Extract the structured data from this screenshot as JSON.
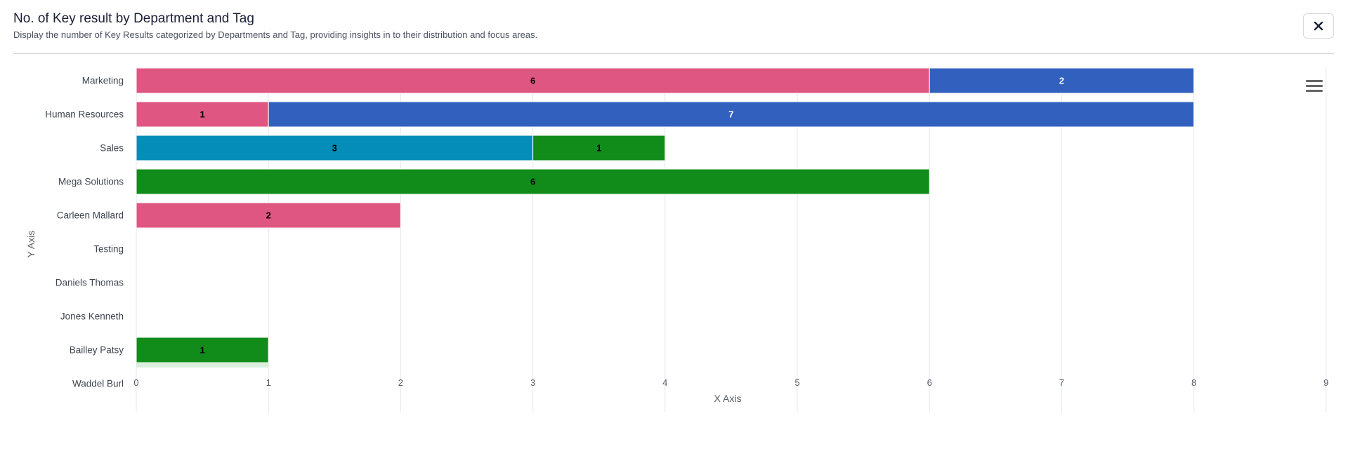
{
  "header": {
    "title": "No. of Key result by Department and Tag",
    "subtitle": "Display the number of Key Results categorized by Departments and Tag, providing insights in to their distribution and focus areas."
  },
  "close_icon": "close-icon",
  "menu_icon": "hamburger-menu-icon",
  "chart_data": {
    "type": "bar",
    "orientation": "horizontal",
    "stacked": true,
    "categories": [
      "Marketing",
      "Human Resources",
      "Sales",
      "Mega Solutions",
      "Carleen Mallard",
      "Testing",
      "Daniels Thomas",
      "Jones Kenneth",
      "Bailley Patsy",
      "Waddel Burl"
    ],
    "series": [
      {
        "color": "#e05683",
        "label_color": "#000000",
        "values": [
          6,
          1,
          0,
          0,
          2,
          0,
          0,
          0,
          0,
          0
        ]
      },
      {
        "color": "#3260be",
        "label_color": "#ffffff",
        "values": [
          2,
          7,
          0,
          0,
          0,
          0,
          0,
          0,
          0,
          0
        ]
      },
      {
        "color": "#048db8",
        "label_color": "#000000",
        "values": [
          0,
          0,
          3,
          0,
          0,
          0,
          0,
          0,
          0,
          0
        ]
      },
      {
        "color": "#118c1a",
        "label_color": "#000000",
        "values": [
          0,
          0,
          1,
          6,
          0,
          0,
          0,
          0,
          1,
          0
        ]
      }
    ],
    "xlabel": "X Axis",
    "ylabel": "Y Axis",
    "xlim": [
      0,
      9
    ],
    "xticks": [
      "0",
      "1",
      "2",
      "3",
      "4",
      "5",
      "6",
      "7",
      "8",
      "9"
    ],
    "grid": true,
    "faded_categories": [
      "Waddel Burl"
    ]
  }
}
